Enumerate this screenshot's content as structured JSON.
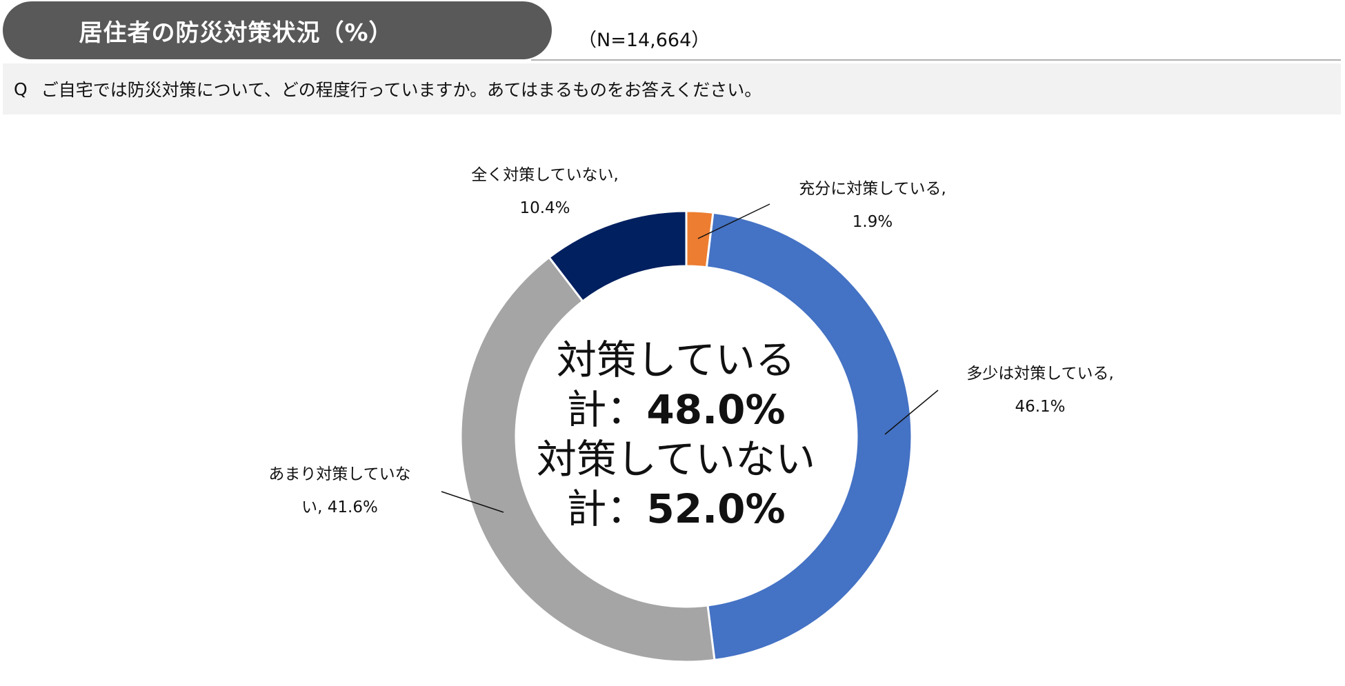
{
  "header": {
    "title": "居住者の防災対策状況（%）",
    "sample_size": "（N=14,664）"
  },
  "question": {
    "prefix": "Q",
    "text": "ご自宅では防災対策について、どの程度行っていますか。あてはまるものをお答えください。"
  },
  "center_summary": {
    "line1_label": "対策している",
    "line1_prefix": "計：",
    "line1_value": "48.0%",
    "line2_label": "対策していない",
    "line2_prefix": "計：",
    "line2_value": "52.0%"
  },
  "labels": {
    "juubun_name": "充分に対策している,",
    "juubun_value": "1.9%",
    "tashou_name": "多少は対策している,",
    "tashou_value": "46.1%",
    "amari_line1": "あまり対策していな",
    "amari_line2": "い, 41.6%",
    "mattaku_name": "全く対策していない,",
    "mattaku_value": "10.4%"
  },
  "chart_data": {
    "type": "pie",
    "style": "donut",
    "title": "居住者の防災対策状況（%）",
    "unit": "%",
    "start_angle_deg": 0,
    "direction": "clockwise",
    "slices": [
      {
        "label": "充分に対策している",
        "value": 1.9,
        "color": "#ED7D31"
      },
      {
        "label": "多少は対策している",
        "value": 46.1,
        "color": "#4472C4"
      },
      {
        "label": "あまり対策していない",
        "value": 41.6,
        "color": "#A5A5A5"
      },
      {
        "label": "全く対策していない",
        "value": 10.4,
        "color": "#002060"
      }
    ],
    "totals": [
      {
        "label": "対策している 計",
        "value": 48.0
      },
      {
        "label": "対策していない 計",
        "value": 52.0
      }
    ]
  }
}
